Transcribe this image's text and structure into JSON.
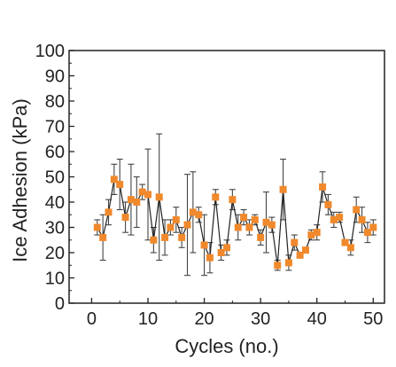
{
  "chart_data": {
    "type": "scatter",
    "xlabel": "Cycles (no.)",
    "ylabel": "Ice Adhesion (kPa)",
    "xlim": [
      -4,
      52
    ],
    "ylim": [
      0,
      100
    ],
    "xticks": [
      0,
      10,
      20,
      30,
      40,
      50
    ],
    "yticks": [
      0,
      10,
      20,
      30,
      40,
      50,
      60,
      70,
      80,
      90,
      100
    ],
    "grid": false,
    "legend": "none",
    "colors": {
      "marker": "#f0892c",
      "line": "#222222",
      "error_bar": "#444444"
    },
    "series": [
      {
        "x": [
          1,
          2,
          3,
          4,
          5,
          6,
          7,
          8,
          9,
          10,
          11,
          12,
          13,
          14,
          15,
          16,
          17,
          18,
          19,
          20,
          21,
          22,
          23,
          24,
          25,
          26,
          27,
          28,
          29,
          30,
          31,
          32,
          33,
          34,
          35,
          36,
          37,
          38,
          39,
          40,
          41,
          42,
          43,
          44,
          45,
          46,
          47,
          48,
          49,
          50
        ],
        "y": [
          30,
          26,
          36,
          49,
          47,
          34,
          41,
          40,
          44,
          43,
          25,
          42,
          26,
          30,
          33,
          26,
          31,
          36,
          35,
          23,
          18,
          42,
          20,
          22,
          41,
          30,
          34,
          30,
          33,
          26,
          32,
          31,
          15,
          45,
          16,
          24,
          19,
          21,
          27,
          28,
          46,
          39,
          33,
          34,
          24,
          22,
          37,
          33,
          28,
          30
        ],
        "error": [
          3,
          9,
          5,
          6,
          10,
          6,
          14,
          10,
          3,
          18,
          5,
          25,
          7,
          3,
          5,
          4,
          20,
          16,
          3,
          12,
          6,
          3,
          3,
          3,
          4,
          5,
          3,
          3,
          2,
          3,
          12,
          3,
          2,
          12,
          3,
          3,
          1,
          1,
          2,
          3,
          6,
          4,
          3,
          2,
          1,
          3,
          5,
          5,
          4,
          3
        ]
      }
    ]
  }
}
